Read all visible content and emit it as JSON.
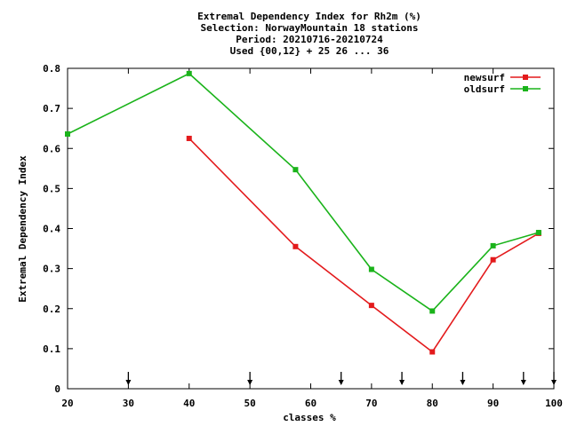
{
  "chart_data": {
    "type": "line",
    "title_lines": [
      "Extremal Dependency Index  for Rh2m (%)",
      "Selection: NorwayMountain     18 stations",
      "Period: 20210716-20210724",
      "Used {00,12} + 25 26 ... 36"
    ],
    "xlabel": "classes %",
    "ylabel": "Extremal Dependency Index",
    "xlim": [
      20,
      100
    ],
    "ylim": [
      0,
      0.8
    ],
    "xticks": [
      20,
      30,
      40,
      50,
      60,
      70,
      80,
      90,
      100
    ],
    "xtick_labels": [
      "20",
      "30",
      "40",
      "50",
      "60",
      "70",
      "80",
      "90",
      "100"
    ],
    "yticks": [
      0,
      0.1,
      0.2,
      0.3,
      0.4,
      0.5,
      0.6,
      0.7,
      0.8
    ],
    "ytick_labels": [
      "0",
      "0.1",
      "0.2",
      "0.3",
      "0.4",
      "0.5",
      "0.6",
      "0.7",
      "0.8"
    ],
    "grid": false,
    "legend_position": "top-right",
    "arrow_markers_x": [
      30,
      50,
      65,
      75,
      85,
      95,
      100
    ],
    "series": [
      {
        "name": "newsurf",
        "color": "#e31a1c",
        "x": [
          40,
          57.5,
          70,
          80,
          90,
          97.5
        ],
        "y": [
          0.625,
          0.355,
          0.208,
          0.092,
          0.322,
          0.388
        ]
      },
      {
        "name": "oldsurf",
        "color": "#1ab31a",
        "x": [
          20,
          40,
          57.5,
          70,
          80,
          90,
          97.5
        ],
        "y": [
          0.636,
          0.787,
          0.547,
          0.298,
          0.194,
          0.357,
          0.39
        ]
      }
    ]
  }
}
